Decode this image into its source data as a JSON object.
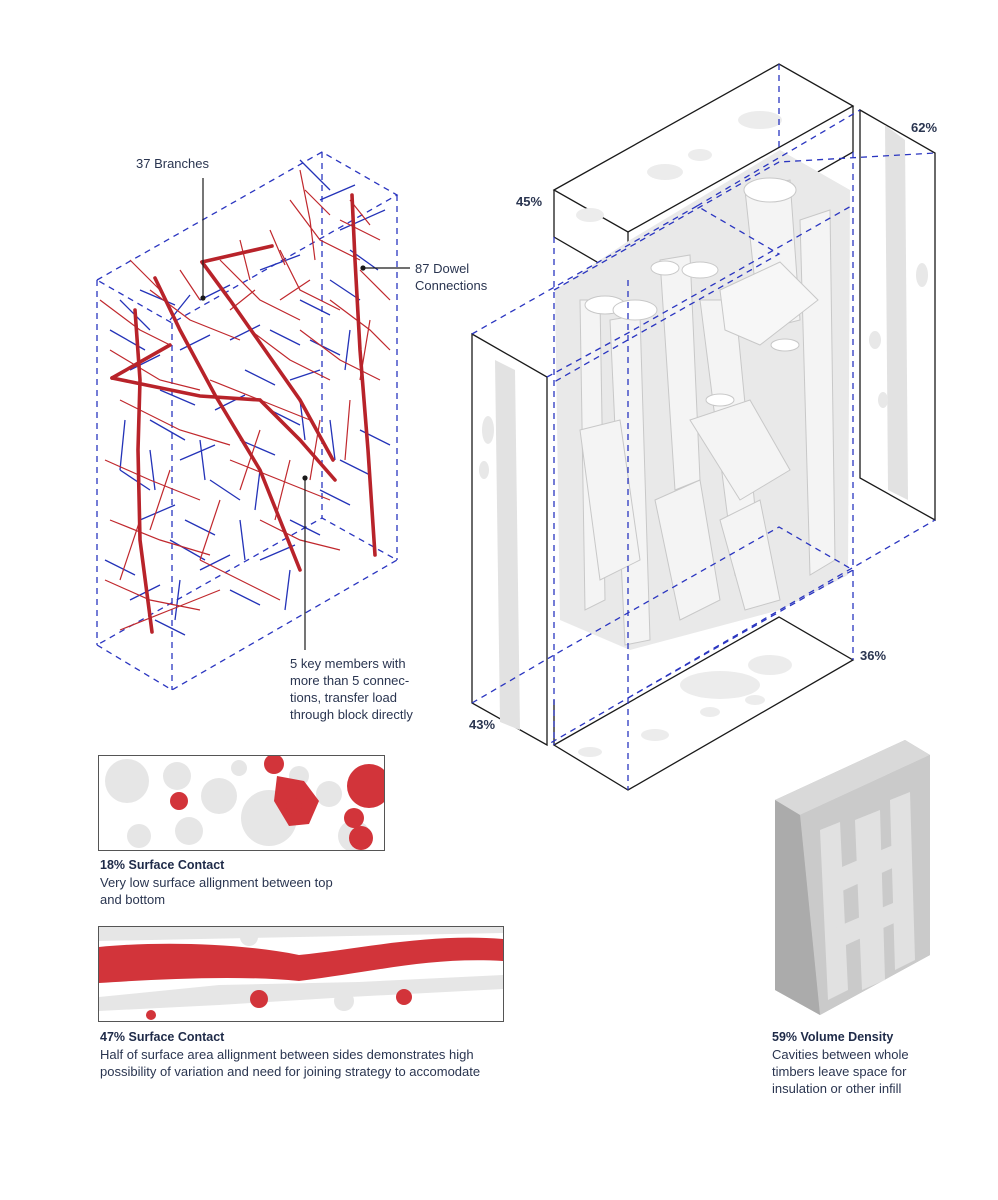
{
  "labels": {
    "branches": "37 Branches",
    "dowel_line1": "87 Dowel",
    "dowel_line2": "Connections",
    "key_line1": "5 key members with",
    "key_line2": "more than 5 connec-",
    "key_line3": "tions, transfer load",
    "key_line4": "through block directly"
  },
  "percentages": {
    "left_top": "45%",
    "right_top": "62%",
    "right_bottom": "36%",
    "left_bottom": "43%"
  },
  "captions": {
    "top_contact_title": "18% Surface Contact",
    "top_contact_l1": "Very low surface allignment between top",
    "top_contact_l2": "and bottom",
    "side_contact_title": "47% Surface Contact",
    "side_contact_l1": "Half of surface area allignment between sides demonstrates high",
    "side_contact_l2": "possibility of variation and need for joining strategy to accomodate",
    "volume_title": "59% Volume Density",
    "volume_l1": "Cavities between whole",
    "volume_l2": "timbers leave space for",
    "volume_l3": "insulation or other infill"
  },
  "colors": {
    "branch_red": "#c0282d",
    "dowel_blue": "#2433b8",
    "outline": "#1a1a1a",
    "dashed_blue": "#2a35c0",
    "timber_grey": "#dcdcdc",
    "contact_red": "#d2343a"
  }
}
